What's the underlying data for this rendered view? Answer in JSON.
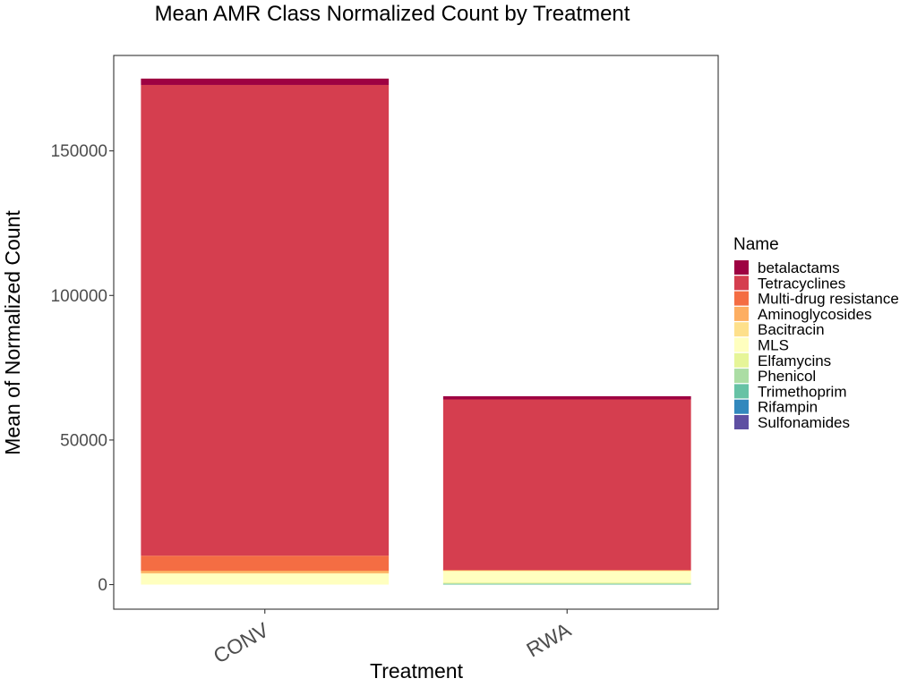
{
  "chart_data": {
    "type": "bar",
    "stacked": true,
    "title": "Mean AMR Class Normalized Count by Treatment",
    "xlabel": "Treatment",
    "ylabel": "Mean of Normalized Count",
    "categories": [
      "CONV",
      "RWA"
    ],
    "ylim": [
      -8500,
      183000
    ],
    "yticks": [
      0,
      50000,
      100000,
      150000
    ],
    "ytick_labels": [
      "0",
      "50000",
      "100000",
      "150000"
    ],
    "grid": false,
    "legend": {
      "title": "Name",
      "position": "right"
    },
    "series": [
      {
        "name": "Sulfonamides",
        "color": "#5E4FA2",
        "values": [
          0,
          0
        ]
      },
      {
        "name": "Rifampin",
        "color": "#3288BD",
        "values": [
          0,
          0
        ]
      },
      {
        "name": "Trimethoprim",
        "color": "#66C2A5",
        "values": [
          0,
          150
        ]
      },
      {
        "name": "Phenicol",
        "color": "#ABDDA4",
        "values": [
          0,
          300
        ]
      },
      {
        "name": "Elfamycins",
        "color": "#E6F598",
        "values": [
          0,
          300
        ]
      },
      {
        "name": "MLS",
        "color": "#FFFFBF",
        "values": [
          3800,
          3900
        ]
      },
      {
        "name": "Bacitracin",
        "color": "#FEE08B",
        "values": [
          200,
          200
        ]
      },
      {
        "name": "Aminoglycosides",
        "color": "#FDAE61",
        "values": [
          800,
          100
        ]
      },
      {
        "name": "Multi-drug resistance",
        "color": "#F46D43",
        "values": [
          5200,
          100
        ]
      },
      {
        "name": "Tetracyclines",
        "color": "#D53E4F",
        "values": [
          162800,
          59000
        ]
      },
      {
        "name": "betalactams",
        "color": "#9E0142",
        "values": [
          2200,
          1100
        ]
      }
    ],
    "legend_order": [
      "betalactams",
      "Tetracyclines",
      "Multi-drug resistance",
      "Aminoglycosides",
      "Bacitracin",
      "MLS",
      "Elfamycins",
      "Phenicol",
      "Trimethoprim",
      "Rifampin",
      "Sulfonamides"
    ]
  }
}
